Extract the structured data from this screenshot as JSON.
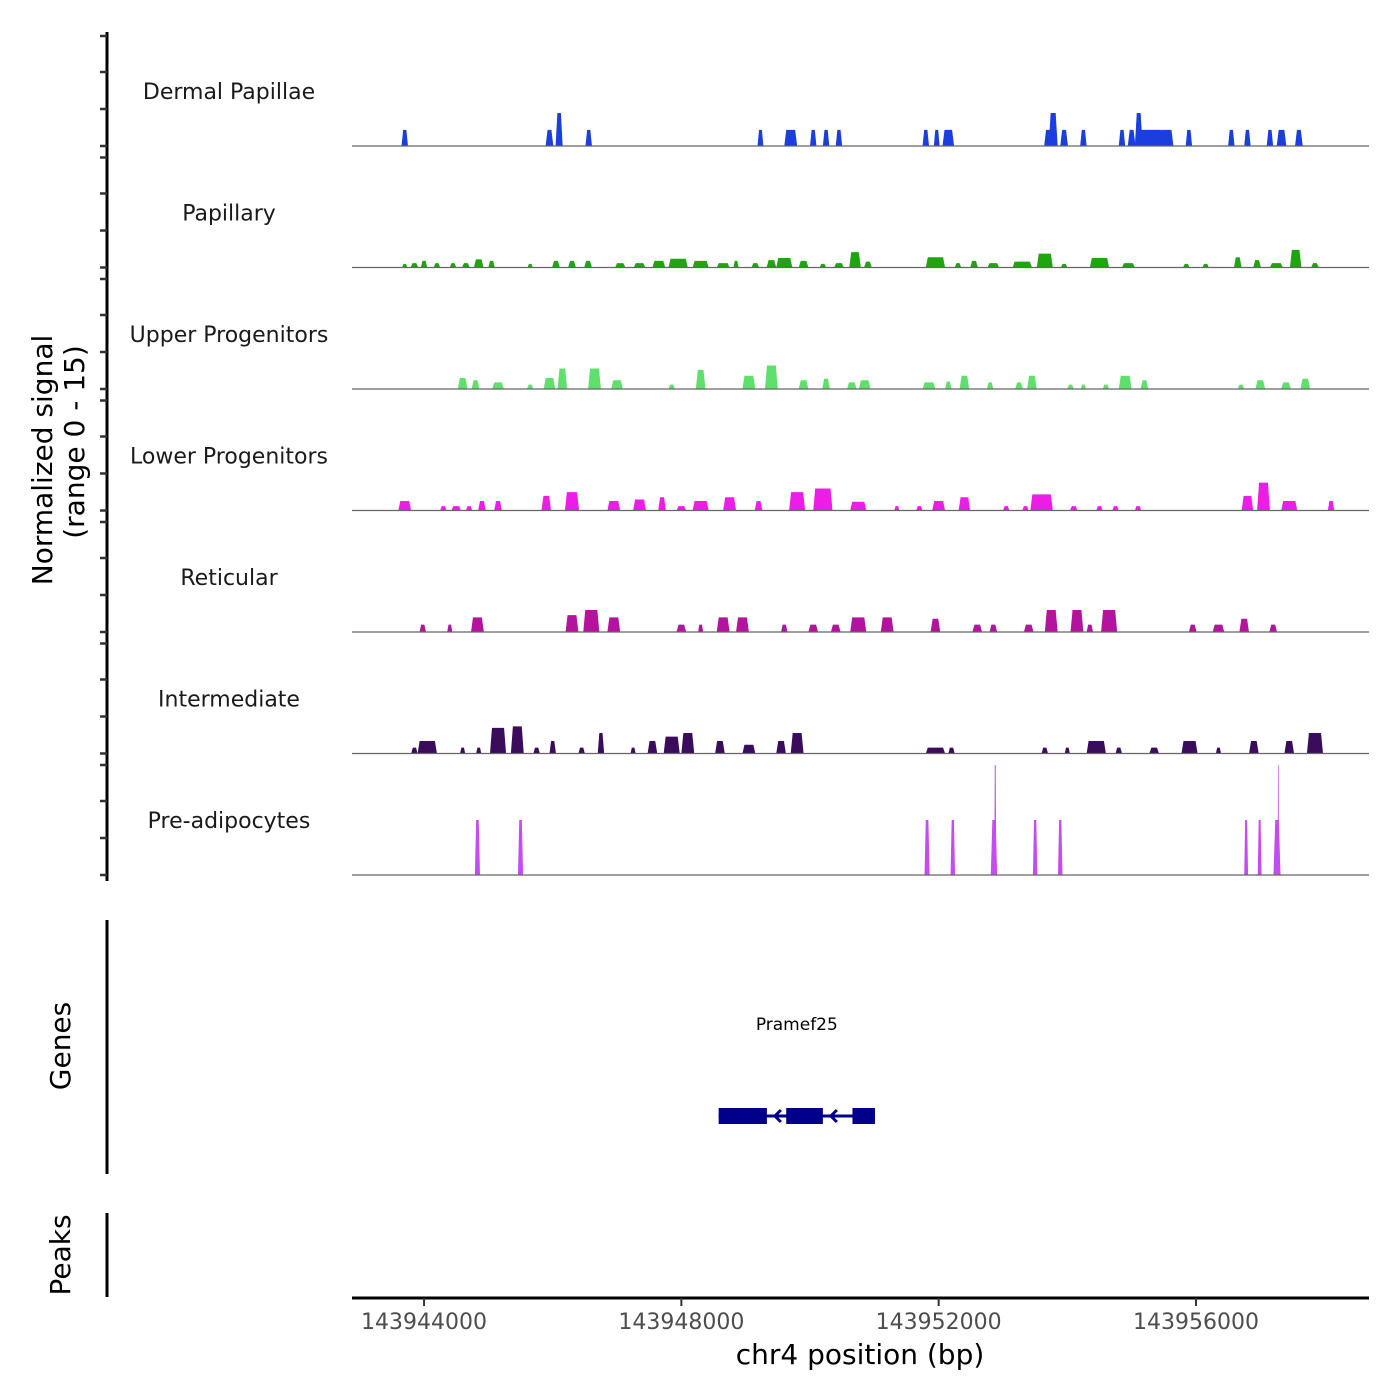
{
  "chart_data": {
    "type": "area",
    "title": "",
    "xlabel": "chr4 position (bp)",
    "ylabel": "Normalized signal\n(range 0 - 15)",
    "ylabel_lines": [
      "Normalized signal",
      "(range 0 - 15)"
    ],
    "ylim": [
      0,
      15
    ],
    "xlim": [
      143942880,
      143958690
    ],
    "x_ticks": [
      143944000,
      143948000,
      143952000,
      143956000
    ],
    "x_tick_labels": [
      "143944000",
      "143948000",
      "143952000",
      "143956000"
    ],
    "grid": false,
    "legend": "none",
    "series": [
      {
        "name": "Dermal Papillae",
        "color": "#1a3fdc",
        "peaks": [
          [
            143943700,
            100,
            2.2
          ],
          [
            143945950,
            120,
            2.2
          ],
          [
            143946100,
            110,
            4.5
          ],
          [
            143946560,
            100,
            2.2
          ],
          [
            143949230,
            90,
            2.2
          ],
          [
            143949700,
            200,
            2.2
          ],
          [
            143950050,
            100,
            2.2
          ],
          [
            143950250,
            100,
            2.2
          ],
          [
            143950450,
            100,
            2.2
          ],
          [
            143951800,
            100,
            2.2
          ],
          [
            143951970,
            90,
            2.2
          ],
          [
            143952150,
            180,
            2.2
          ],
          [
            143953700,
            120,
            2.2
          ],
          [
            143953780,
            140,
            4.5
          ],
          [
            143953950,
            120,
            2.2
          ],
          [
            143954250,
            100,
            2.2
          ],
          [
            143954850,
            100,
            2.2
          ],
          [
            143955000,
            120,
            2.2
          ],
          [
            143955110,
            120,
            4.5
          ],
          [
            143955300,
            380,
            2.2
          ],
          [
            143955540,
            220,
            2.2
          ],
          [
            143955890,
            100,
            2.2
          ],
          [
            143956550,
            100,
            2.2
          ],
          [
            143956800,
            100,
            2.2
          ],
          [
            143957150,
            100,
            2.2
          ],
          [
            143957330,
            150,
            2.2
          ],
          [
            143957600,
            120,
            2.2
          ]
        ]
      },
      {
        "name": "Papillary",
        "color": "#1fa50f",
        "peaks": [
          [
            143943700,
            80,
            0.5
          ],
          [
            143943850,
            120,
            0.6
          ],
          [
            143944000,
            100,
            0.9
          ],
          [
            143944200,
            100,
            0.6
          ],
          [
            143944450,
            100,
            0.6
          ],
          [
            143944650,
            120,
            0.6
          ],
          [
            143944850,
            150,
            1.1
          ],
          [
            143945050,
            100,
            0.9
          ],
          [
            143945650,
            80,
            0.5
          ],
          [
            143946050,
            120,
            0.9
          ],
          [
            143946300,
            120,
            0.9
          ],
          [
            143946550,
            120,
            0.9
          ],
          [
            143947050,
            160,
            0.6
          ],
          [
            143947350,
            180,
            0.6
          ],
          [
            143947650,
            200,
            0.9
          ],
          [
            143947950,
            300,
            1.2
          ],
          [
            143948300,
            250,
            0.9
          ],
          [
            143948650,
            200,
            0.6
          ],
          [
            143948850,
            80,
            0.9
          ],
          [
            143949150,
            120,
            0.6
          ],
          [
            143949400,
            150,
            1.0
          ],
          [
            143949600,
            250,
            1.3
          ],
          [
            143949900,
            150,
            0.9
          ],
          [
            143950200,
            100,
            0.5
          ],
          [
            143950450,
            150,
            0.6
          ],
          [
            143950700,
            180,
            2.1
          ],
          [
            143950900,
            120,
            0.8
          ],
          [
            143951950,
            300,
            1.4
          ],
          [
            143952300,
            100,
            0.6
          ],
          [
            143952550,
            120,
            0.9
          ],
          [
            143952850,
            180,
            0.6
          ],
          [
            143953300,
            300,
            0.8
          ],
          [
            143953650,
            250,
            1.9
          ],
          [
            143953950,
            100,
            0.5
          ],
          [
            143954500,
            300,
            1.3
          ],
          [
            143954950,
            200,
            0.6
          ],
          [
            143955850,
            100,
            0.5
          ],
          [
            143956150,
            100,
            0.5
          ],
          [
            143956650,
            120,
            1.4
          ],
          [
            143956950,
            120,
            1.0
          ],
          [
            143957250,
            200,
            0.6
          ],
          [
            143957550,
            180,
            2.4
          ],
          [
            143957850,
            120,
            0.6
          ]
        ]
      },
      {
        "name": "Upper Progenitors",
        "color": "#5fe06c",
        "peaks": [
          [
            143944600,
            150,
            1.5
          ],
          [
            143944800,
            120,
            1.2
          ],
          [
            143945150,
            180,
            0.9
          ],
          [
            143945650,
            100,
            0.6
          ],
          [
            143945950,
            180,
            1.5
          ],
          [
            143946150,
            150,
            2.8
          ],
          [
            143946650,
            200,
            2.8
          ],
          [
            143947000,
            180,
            1.2
          ],
          [
            143947850,
            100,
            0.6
          ],
          [
            143948300,
            150,
            2.6
          ],
          [
            143949050,
            200,
            1.8
          ],
          [
            143949400,
            200,
            3.2
          ],
          [
            143949900,
            150,
            1.2
          ],
          [
            143950250,
            120,
            1.4
          ],
          [
            143950650,
            150,
            0.9
          ],
          [
            143950850,
            180,
            1.2
          ],
          [
            143951850,
            200,
            0.9
          ],
          [
            143952150,
            100,
            1.0
          ],
          [
            143952400,
            150,
            1.8
          ],
          [
            143952800,
            100,
            0.9
          ],
          [
            143953250,
            120,
            0.9
          ],
          [
            143953450,
            150,
            1.8
          ],
          [
            143954050,
            100,
            0.6
          ],
          [
            143954250,
            80,
            0.6
          ],
          [
            143954600,
            100,
            0.6
          ],
          [
            143954900,
            200,
            1.8
          ],
          [
            143955200,
            120,
            1.2
          ],
          [
            143956700,
            100,
            0.6
          ],
          [
            143957000,
            150,
            1.2
          ],
          [
            143957400,
            150,
            0.9
          ],
          [
            143957700,
            150,
            1.4
          ]
        ]
      },
      {
        "name": "Lower Progenitors",
        "color": "#ee1de6",
        "peaks": [
          [
            143943700,
            200,
            1.3
          ],
          [
            143944300,
            100,
            0.6
          ],
          [
            143944500,
            150,
            0.6
          ],
          [
            143944700,
            100,
            0.6
          ],
          [
            143944900,
            120,
            1.3
          ],
          [
            143945150,
            120,
            1.3
          ],
          [
            143945900,
            150,
            2.0
          ],
          [
            143946300,
            220,
            2.5
          ],
          [
            143946950,
            200,
            1.3
          ],
          [
            143947350,
            200,
            1.5
          ],
          [
            143947700,
            120,
            1.8
          ],
          [
            143948000,
            150,
            0.6
          ],
          [
            143948300,
            250,
            1.3
          ],
          [
            143948750,
            200,
            1.8
          ],
          [
            143949200,
            120,
            1.3
          ],
          [
            143949800,
            250,
            2.5
          ],
          [
            143950200,
            300,
            3.0
          ],
          [
            143950750,
            250,
            1.2
          ],
          [
            143951350,
            80,
            0.6
          ],
          [
            143951700,
            100,
            0.6
          ],
          [
            143952000,
            200,
            1.3
          ],
          [
            143952400,
            180,
            1.8
          ],
          [
            143953050,
            100,
            0.6
          ],
          [
            143953350,
            100,
            0.6
          ],
          [
            143953600,
            350,
            2.2
          ],
          [
            143954100,
            120,
            0.6
          ],
          [
            143954500,
            100,
            0.6
          ],
          [
            143954750,
            100,
            0.6
          ],
          [
            143955100,
            100,
            0.6
          ],
          [
            143956800,
            180,
            2.0
          ],
          [
            143957050,
            200,
            3.8
          ],
          [
            143957450,
            250,
            1.3
          ],
          [
            143958100,
            100,
            1.3
          ]
        ]
      },
      {
        "name": "Reticular",
        "color": "#b3149f",
        "peaks": [
          [
            143943980,
            100,
            1.0
          ],
          [
            143944400,
            80,
            1.0
          ],
          [
            143944830,
            200,
            2.0
          ],
          [
            143946300,
            200,
            2.3
          ],
          [
            143946600,
            250,
            3.0
          ],
          [
            143946950,
            200,
            2.0
          ],
          [
            143948000,
            150,
            1.0
          ],
          [
            143948300,
            80,
            1.0
          ],
          [
            143948650,
            200,
            2.0
          ],
          [
            143948950,
            200,
            2.0
          ],
          [
            143949600,
            100,
            1.0
          ],
          [
            143950050,
            150,
            1.0
          ],
          [
            143950400,
            150,
            1.0
          ],
          [
            143950750,
            250,
            2.0
          ],
          [
            143951200,
            200,
            2.0
          ],
          [
            143951950,
            150,
            1.8
          ],
          [
            143952600,
            150,
            1.0
          ],
          [
            143952850,
            120,
            1.0
          ],
          [
            143953400,
            150,
            1.0
          ],
          [
            143953750,
            200,
            3.0
          ],
          [
            143954150,
            200,
            3.0
          ],
          [
            143954350,
            100,
            1.0
          ],
          [
            143954650,
            250,
            3.0
          ],
          [
            143955950,
            120,
            1.0
          ],
          [
            143956350,
            180,
            1.0
          ],
          [
            143956750,
            150,
            1.8
          ],
          [
            143957200,
            120,
            1.0
          ]
        ]
      },
      {
        "name": "Intermediate",
        "color": "#3b0b5c",
        "peaks": [
          [
            143943850,
            100,
            0.8
          ],
          [
            143944050,
            300,
            1.7
          ],
          [
            143944600,
            80,
            0.8
          ],
          [
            143944850,
            80,
            0.8
          ],
          [
            143945150,
            250,
            3.5
          ],
          [
            143945450,
            200,
            3.7
          ],
          [
            143945750,
            100,
            0.8
          ],
          [
            143946000,
            100,
            1.7
          ],
          [
            143946450,
            100,
            0.8
          ],
          [
            143946750,
            100,
            2.8
          ],
          [
            143947250,
            80,
            0.8
          ],
          [
            143947550,
            150,
            1.7
          ],
          [
            143947850,
            250,
            2.3
          ],
          [
            143948100,
            200,
            2.8
          ],
          [
            143948600,
            150,
            1.7
          ],
          [
            143949050,
            200,
            1.2
          ],
          [
            143949550,
            150,
            1.7
          ],
          [
            143949800,
            200,
            2.8
          ],
          [
            143951950,
            300,
            0.8
          ],
          [
            143952200,
            100,
            0.8
          ],
          [
            143953650,
            100,
            0.8
          ],
          [
            143954000,
            80,
            0.8
          ],
          [
            143954450,
            300,
            1.7
          ],
          [
            143954800,
            100,
            0.8
          ],
          [
            143955350,
            150,
            0.8
          ],
          [
            143955900,
            250,
            1.7
          ],
          [
            143956350,
            80,
            0.8
          ],
          [
            143956900,
            150,
            1.7
          ],
          [
            143957450,
            150,
            1.7
          ],
          [
            143957850,
            250,
            2.8
          ]
        ]
      },
      {
        "name": "Pre-adipocytes",
        "color": "#c34df0",
        "peaks": [
          [
            143944830,
            80,
            7.5
          ],
          [
            143945500,
            80,
            7.5
          ],
          [
            143951820,
            80,
            7.5
          ],
          [
            143952220,
            70,
            7.5
          ],
          [
            143952860,
            100,
            7.5
          ],
          [
            143952880,
            30,
            15
          ],
          [
            143953500,
            70,
            7.5
          ],
          [
            143953890,
            70,
            7.5
          ],
          [
            143956780,
            60,
            7.5
          ],
          [
            143956990,
            60,
            7.5
          ],
          [
            143957260,
            110,
            7.5
          ],
          [
            143957280,
            20,
            15
          ]
        ]
      }
    ],
    "genes_track": {
      "label": "Genes",
      "genes": [
        {
          "name": "Pramef25",
          "strand": "-",
          "start": 143948580,
          "end": 143951010,
          "exons": [
            [
              143948580,
              143949330
            ],
            [
              143949630,
              143950200
            ],
            [
              143950660,
              143951010
            ]
          ],
          "color": "#00008b"
        }
      ]
    },
    "peaks_track": {
      "label": "Peaks",
      "peaks": []
    }
  }
}
